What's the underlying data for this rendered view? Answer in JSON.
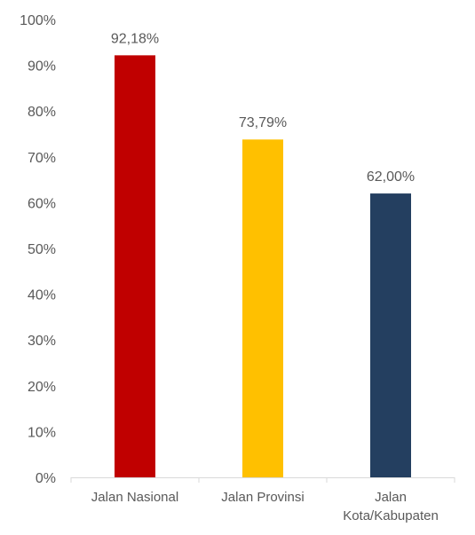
{
  "chart_data": {
    "type": "bar",
    "title": "",
    "xlabel": "",
    "ylabel": "",
    "categories": [
      "Jalan Nasional",
      "Jalan Provinsi",
      "Jalan Kota/Kabupaten"
    ],
    "category_label_lines": [
      [
        "Jalan Nasional"
      ],
      [
        "Jalan Provinsi"
      ],
      [
        "Jalan",
        "Kota/Kabupaten"
      ]
    ],
    "values": [
      92.18,
      73.79,
      62.0
    ],
    "value_labels": [
      "92,18%",
      "73,79%",
      "62,00%"
    ],
    "colors": [
      "#c00000",
      "#ffc000",
      "#243f60"
    ],
    "ylim": [
      0,
      100
    ],
    "y_ticks": [
      0,
      10,
      20,
      30,
      40,
      50,
      60,
      70,
      80,
      90,
      100
    ],
    "y_tick_labels": [
      "0%",
      "10%",
      "20%",
      "30%",
      "40%",
      "50%",
      "60%",
      "70%",
      "80%",
      "90%",
      "100%"
    ],
    "grid": false,
    "legend": "none"
  }
}
